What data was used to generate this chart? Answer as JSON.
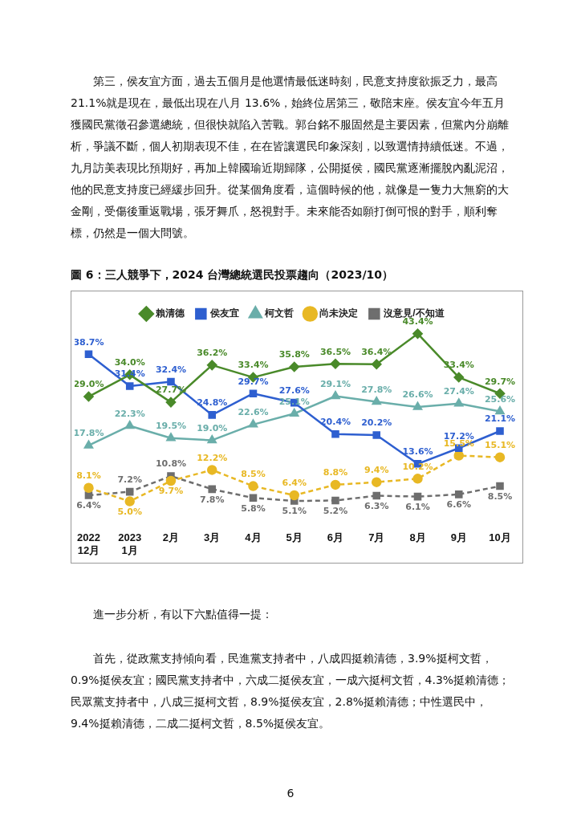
{
  "chart_data": {
    "type": "line",
    "title": "圖 6：三人競爭下，2024 台灣總統選民投票趨向（2023/10）",
    "annotations": [
      "第三，侯友宜方面，過去五個月是他選情最低迷時刻，民意支持度欲振乏力，最高21.1%就是現在，最低出現在八月 13.6%，始終位居第三，敬陪末座。侯友宜今年五月獲國民黨徵召參選總統，但很快就陷入苦戰。郭台銘不服固然是主要因素，但黨內分崩離析，爭議不斷，個人初期表現不佳，在在皆讓選民印象深刻，以致選情持續低迷。不過，九月訪美表現比預期好，再加上韓國瑜近期歸隊，公開挺侯，國民黨逐漸擺脫內亂泥沼，他的民意支持度已經緩步回升。從某個角度看，這個時候的他，就像是一隻力大無窮的大金剛，受傷後重返戰場，張牙舞爪，怒視對手。未來能否如願打倒可恨的對手，順利奪標，仍然是一個大問號。",
      "進一步分析，有以下六點值得一提：",
      "首先，從政黨支持傾向看，民進黨支持者中，八成四挺賴清德，3.9%挺柯文哲，0.9%挺侯友宜；國民黨支持者中，六成二挺侯友宜，一成六挺柯文哲，4.3%挺賴清德；民眾黨支持者中，八成三挺柯文哲，8.9%挺侯友宜，2.8%挺賴清德；中性選民中，9.4%挺賴清德，二成二挺柯文哲，8.5%挺侯友宜。",
      "6"
    ],
    "categories": [
      "2022\n12月",
      "2023\n1月",
      "2月",
      "3月",
      "4月",
      "5月",
      "6月",
      "7月",
      "8月",
      "9月",
      "10月"
    ],
    "series": [
      {
        "name": "賴清德",
        "color": "#4a8a2a",
        "marker": "diamond",
        "line_style": "solid",
        "values": [
          29.0,
          34.0,
          27.7,
          36.2,
          33.4,
          35.8,
          36.5,
          36.4,
          43.4,
          33.4,
          29.7
        ],
        "value_labels": [
          "29.0%",
          "34.0%",
          "27.7%",
          "36.2%",
          "33.4%",
          "35.8%",
          "36.5%",
          "36.4%",
          "43.4%",
          "33.4%",
          "29.7%"
        ]
      },
      {
        "name": "侯友宜",
        "color": "#2e5fd0",
        "marker": "square",
        "line_style": "solid",
        "values": [
          38.7,
          31.4,
          32.4,
          24.8,
          29.7,
          27.6,
          20.4,
          20.2,
          13.6,
          17.2,
          21.1
        ],
        "value_labels": [
          "38.7%",
          "31.4%",
          "32.4%",
          "24.8%",
          "29.7%",
          "27.6%",
          "20.4%",
          "20.2%",
          "13.6%",
          "17.2%",
          "21.1%"
        ]
      },
      {
        "name": "柯文哲",
        "color": "#6aaeaa",
        "marker": "triangle",
        "line_style": "solid",
        "values": [
          17.8,
          22.3,
          19.5,
          19.0,
          22.6,
          25.1,
          29.1,
          27.8,
          26.6,
          27.4,
          25.6
        ],
        "value_labels": [
          "17.8%",
          "22.3%",
          "19.5%",
          "19.0%",
          "22.6%",
          "25.1%",
          "29.1%",
          "27.8%",
          "26.6%",
          "27.4%",
          "25.6%"
        ]
      },
      {
        "name": "尚未決定",
        "color": "#e8b824",
        "marker": "circle",
        "line_style": "dashed",
        "values": [
          8.1,
          5.0,
          9.7,
          12.2,
          8.5,
          6.4,
          8.8,
          9.4,
          10.2,
          15.5,
          15.1
        ],
        "value_labels": [
          "8.1%",
          "5.0%",
          "9.7%",
          "12.2%",
          "8.5%",
          "6.4%",
          "8.8%",
          "9.4%",
          "10.2%",
          "15.5%",
          "15.1%"
        ]
      },
      {
        "name": "沒意見/不知道",
        "color": "#6e6e6e",
        "marker": "square",
        "line_style": "dashed",
        "values": [
          6.4,
          7.2,
          10.8,
          7.8,
          5.8,
          5.1,
          5.2,
          6.3,
          6.1,
          6.6,
          8.5
        ],
        "value_labels": [
          "6.4%",
          "7.2%",
          "10.8%",
          "7.8%",
          "5.8%",
          "5.1%",
          "5.2%",
          "6.3%",
          "6.1%",
          "6.6%",
          "8.5%"
        ]
      }
    ],
    "legend": "top",
    "grid": false
  }
}
